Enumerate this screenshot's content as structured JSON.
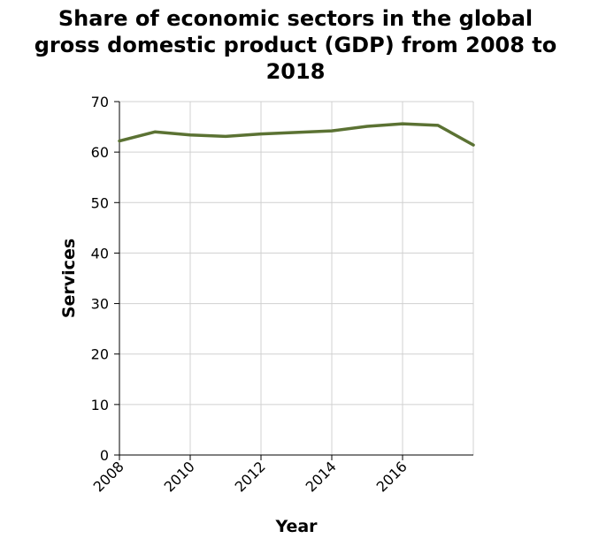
{
  "chart_data": {
    "type": "line",
    "title_lines": [
      "Share of economic sectors in the global",
      "gross domestic product (GDP) from 2008 to",
      "2018"
    ],
    "xlabel": "Year",
    "ylabel": "Services",
    "xlim": [
      2008,
      2018
    ],
    "ylim": [
      0,
      70
    ],
    "xticks": [
      2008,
      2010,
      2012,
      2014,
      2016
    ],
    "yticks": [
      0,
      10,
      20,
      30,
      40,
      50,
      60,
      70
    ],
    "grid": true,
    "series": [
      {
        "x": [
          2008,
          2009,
          2010,
          2011,
          2012,
          2013,
          2014,
          2015,
          2016,
          2017,
          2018
        ],
        "values": [
          62.2,
          64.0,
          63.4,
          63.1,
          63.6,
          63.9,
          64.2,
          65.1,
          65.6,
          65.3,
          61.4
        ]
      }
    ],
    "colors": {
      "line": "#5b7233",
      "grid": "#d0d0d0",
      "axis": "#000000"
    }
  }
}
